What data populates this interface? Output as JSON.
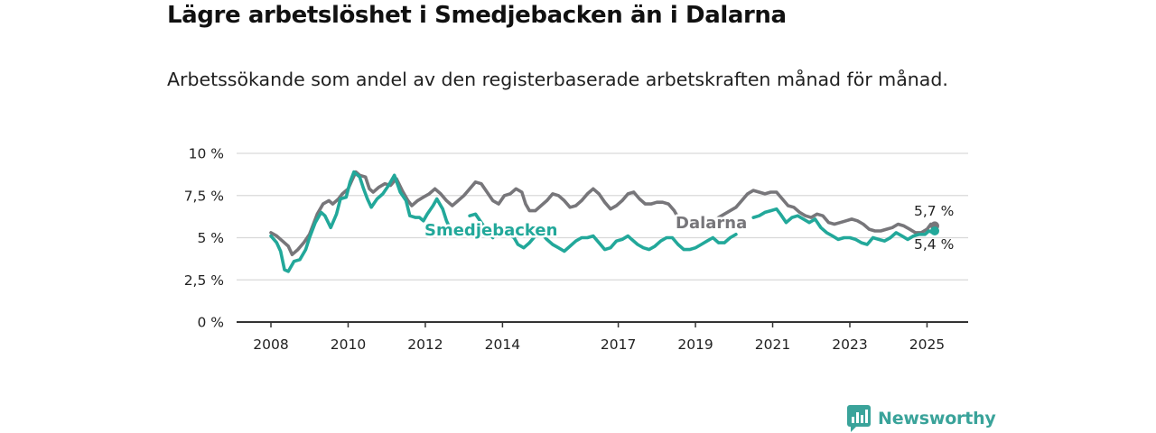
{
  "title": "Lägre arbetslöshet i Smedjebacken än i Dalarna",
  "subtitle": "Arbetssökande som andel av den registerbaserade arbetskraften månad för månad.",
  "brand": {
    "name": "Newsworthy",
    "icon": "newsworthy-logo-icon",
    "color": "#3aa39a"
  },
  "chart_data": {
    "type": "line",
    "title": "Lägre arbetslöshet i Smedjebacken än i Dalarna",
    "subtitle": "Arbetssökande som andel av den registerbaserade arbetskraften månad för månad.",
    "x_range": [
      2008.0,
      2025.25
    ],
    "ylim": [
      0,
      10
    ],
    "y_ticks": [
      {
        "value": 0,
        "label": "0 %"
      },
      {
        "value": 2.5,
        "label": "2,5 %"
      },
      {
        "value": 5,
        "label": "5 %"
      },
      {
        "value": 7.5,
        "label": "7,5 %"
      },
      {
        "value": 10,
        "label": "10 %"
      }
    ],
    "x_ticks": [
      {
        "value": 2008,
        "label": "2008"
      },
      {
        "value": 2010,
        "label": "2010"
      },
      {
        "value": 2012,
        "label": "2012"
      },
      {
        "value": 2014,
        "label": "2014"
      },
      {
        "value": 2017,
        "label": "2017"
      },
      {
        "value": 2019,
        "label": "2019"
      },
      {
        "value": 2021,
        "label": "2021"
      },
      {
        "value": 2023,
        "label": "2023"
      },
      {
        "value": 2025,
        "label": "2025"
      }
    ],
    "grid": true,
    "legend": "inline labels",
    "series": [
      {
        "name": "Dalarna",
        "color": "#77767a",
        "end_label": "5,7 %",
        "points": [
          [
            2008.0,
            5.3
          ],
          [
            2008.15,
            5.1
          ],
          [
            2008.3,
            4.8
          ],
          [
            2008.45,
            4.5
          ],
          [
            2008.55,
            4.0
          ],
          [
            2008.7,
            4.3
          ],
          [
            2008.85,
            4.7
          ],
          [
            2009.0,
            5.2
          ],
          [
            2009.1,
            5.8
          ],
          [
            2009.2,
            6.4
          ],
          [
            2009.35,
            7.0
          ],
          [
            2009.5,
            7.2
          ],
          [
            2009.6,
            7.0
          ],
          [
            2009.75,
            7.3
          ],
          [
            2009.85,
            7.6
          ],
          [
            2010.0,
            7.9
          ],
          [
            2010.1,
            8.4
          ],
          [
            2010.2,
            8.9
          ],
          [
            2010.3,
            8.7
          ],
          [
            2010.45,
            8.6
          ],
          [
            2010.55,
            7.9
          ],
          [
            2010.65,
            7.7
          ],
          [
            2010.8,
            8.0
          ],
          [
            2010.95,
            8.2
          ],
          [
            2011.1,
            8.1
          ],
          [
            2011.25,
            8.5
          ],
          [
            2011.4,
            7.8
          ],
          [
            2011.55,
            7.2
          ],
          [
            2011.65,
            6.9
          ],
          [
            2011.8,
            7.2
          ],
          [
            2011.95,
            7.4
          ],
          [
            2012.1,
            7.6
          ],
          [
            2012.25,
            7.9
          ],
          [
            2012.4,
            7.6
          ],
          [
            2012.55,
            7.2
          ],
          [
            2012.7,
            6.9
          ],
          [
            2012.85,
            7.2
          ],
          [
            2013.0,
            7.5
          ],
          [
            2013.15,
            7.9
          ],
          [
            2013.3,
            8.3
          ],
          [
            2013.45,
            8.2
          ],
          [
            2013.6,
            7.7
          ],
          [
            2013.75,
            7.2
          ],
          [
            2013.9,
            7.0
          ],
          [
            2014.05,
            7.5
          ],
          [
            2014.2,
            7.6
          ],
          [
            2014.35,
            7.9
          ],
          [
            2014.5,
            7.7
          ],
          [
            2014.6,
            7.0
          ],
          [
            2014.7,
            6.6
          ],
          [
            2014.85,
            6.6
          ],
          [
            2015.0,
            6.9
          ],
          [
            2015.15,
            7.2
          ],
          [
            2015.3,
            7.6
          ],
          [
            2015.45,
            7.5
          ],
          [
            2015.6,
            7.2
          ],
          [
            2015.75,
            6.8
          ],
          [
            2015.9,
            6.9
          ],
          [
            2016.05,
            7.2
          ],
          [
            2016.2,
            7.6
          ],
          [
            2016.35,
            7.9
          ],
          [
            2016.5,
            7.6
          ],
          [
            2016.65,
            7.1
          ],
          [
            2016.8,
            6.7
          ],
          [
            2016.95,
            6.9
          ],
          [
            2017.1,
            7.2
          ],
          [
            2017.25,
            7.6
          ],
          [
            2017.4,
            7.7
          ],
          [
            2017.55,
            7.3
          ],
          [
            2017.7,
            7.0
          ],
          [
            2017.85,
            7.0
          ],
          [
            2018.0,
            7.1
          ],
          [
            2018.15,
            7.1
          ],
          [
            2018.3,
            7.0
          ],
          [
            2018.45,
            6.6
          ],
          [
            2018.55,
            6.2
          ],
          [
            2018.7,
            null
          ],
          [
            2019.0,
            null
          ],
          [
            2019.15,
            6.2
          ],
          [
            2019.3,
            5.9
          ],
          [
            2019.45,
            5.8
          ],
          [
            2019.6,
            6.2
          ],
          [
            2019.75,
            6.4
          ],
          [
            2019.9,
            6.6
          ],
          [
            2020.05,
            6.8
          ],
          [
            2020.2,
            7.2
          ],
          [
            2020.35,
            7.6
          ],
          [
            2020.5,
            7.8
          ],
          [
            2020.65,
            7.7
          ],
          [
            2020.8,
            7.6
          ],
          [
            2020.95,
            7.7
          ],
          [
            2021.1,
            7.7
          ],
          [
            2021.25,
            7.3
          ],
          [
            2021.4,
            6.9
          ],
          [
            2021.55,
            6.8
          ],
          [
            2021.7,
            6.5
          ],
          [
            2021.85,
            6.3
          ],
          [
            2022.0,
            6.2
          ],
          [
            2022.15,
            6.4
          ],
          [
            2022.3,
            6.3
          ],
          [
            2022.45,
            5.9
          ],
          [
            2022.6,
            5.8
          ],
          [
            2022.75,
            5.9
          ],
          [
            2022.9,
            6.0
          ],
          [
            2023.05,
            6.1
          ],
          [
            2023.2,
            6.0
          ],
          [
            2023.35,
            5.8
          ],
          [
            2023.5,
            5.5
          ],
          [
            2023.65,
            5.4
          ],
          [
            2023.8,
            5.4
          ],
          [
            2023.95,
            5.5
          ],
          [
            2024.1,
            5.6
          ],
          [
            2024.25,
            5.8
          ],
          [
            2024.4,
            5.7
          ],
          [
            2024.55,
            5.5
          ],
          [
            2024.7,
            5.3
          ],
          [
            2024.85,
            5.3
          ],
          [
            2025.0,
            5.5
          ],
          [
            2025.1,
            5.8
          ],
          [
            2025.2,
            5.7
          ]
        ]
      },
      {
        "name": "Smedjebacken",
        "color": "#22a89a",
        "end_label": "5,4 %",
        "points": [
          [
            2008.0,
            5.1
          ],
          [
            2008.15,
            4.7
          ],
          [
            2008.25,
            4.2
          ],
          [
            2008.35,
            3.1
          ],
          [
            2008.45,
            3.0
          ],
          [
            2008.6,
            3.6
          ],
          [
            2008.75,
            3.7
          ],
          [
            2008.9,
            4.3
          ],
          [
            2009.0,
            5.0
          ],
          [
            2009.15,
            5.9
          ],
          [
            2009.3,
            6.5
          ],
          [
            2009.4,
            6.3
          ],
          [
            2009.55,
            5.6
          ],
          [
            2009.7,
            6.4
          ],
          [
            2009.8,
            7.3
          ],
          [
            2009.95,
            7.4
          ],
          [
            2010.05,
            8.3
          ],
          [
            2010.15,
            8.9
          ],
          [
            2010.3,
            8.6
          ],
          [
            2010.4,
            7.9
          ],
          [
            2010.5,
            7.3
          ],
          [
            2010.6,
            6.8
          ],
          [
            2010.75,
            7.3
          ],
          [
            2010.9,
            7.6
          ],
          [
            2011.05,
            8.1
          ],
          [
            2011.2,
            8.7
          ],
          [
            2011.35,
            7.7
          ],
          [
            2011.5,
            7.2
          ],
          [
            2011.6,
            6.3
          ],
          [
            2011.75,
            6.2
          ],
          [
            2011.85,
            6.2
          ],
          [
            2011.95,
            6.0
          ],
          [
            2012.05,
            6.4
          ],
          [
            2012.2,
            6.9
          ],
          [
            2012.3,
            7.3
          ],
          [
            2012.45,
            6.7
          ],
          [
            2012.55,
            6.0
          ],
          [
            2012.65,
            5.5
          ],
          [
            2012.75,
            5.2
          ],
          [
            2012.85,
            null
          ],
          [
            2013.05,
            null
          ],
          [
            2013.15,
            6.3
          ],
          [
            2013.3,
            6.4
          ],
          [
            2013.45,
            5.9
          ],
          [
            2013.6,
            5.4
          ],
          [
            2013.75,
            5.0
          ],
          [
            2013.9,
            null
          ],
          [
            2014.05,
            null
          ],
          [
            2014.15,
            5.2
          ],
          [
            2014.3,
            5.0
          ],
          [
            2014.4,
            4.6
          ],
          [
            2014.55,
            4.4
          ],
          [
            2014.7,
            4.7
          ],
          [
            2014.85,
            5.1
          ],
          [
            2015.0,
            5.3
          ],
          [
            2015.15,
            4.9
          ],
          [
            2015.3,
            4.6
          ],
          [
            2015.45,
            4.4
          ],
          [
            2015.6,
            4.2
          ],
          [
            2015.75,
            4.5
          ],
          [
            2015.9,
            4.8
          ],
          [
            2016.05,
            5.0
          ],
          [
            2016.2,
            5.0
          ],
          [
            2016.35,
            5.1
          ],
          [
            2016.5,
            4.7
          ],
          [
            2016.65,
            4.3
          ],
          [
            2016.8,
            4.4
          ],
          [
            2016.95,
            4.8
          ],
          [
            2017.1,
            4.9
          ],
          [
            2017.25,
            5.1
          ],
          [
            2017.35,
            4.9
          ],
          [
            2017.5,
            4.6
          ],
          [
            2017.65,
            4.4
          ],
          [
            2017.8,
            4.3
          ],
          [
            2017.95,
            4.5
          ],
          [
            2018.1,
            4.8
          ],
          [
            2018.25,
            5.0
          ],
          [
            2018.4,
            5.0
          ],
          [
            2018.55,
            4.6
          ],
          [
            2018.7,
            4.3
          ],
          [
            2018.85,
            4.3
          ],
          [
            2019.0,
            4.4
          ],
          [
            2019.15,
            4.6
          ],
          [
            2019.3,
            4.8
          ],
          [
            2019.45,
            5.0
          ],
          [
            2019.6,
            4.7
          ],
          [
            2019.75,
            4.7
          ],
          [
            2019.9,
            5.0
          ],
          [
            2020.05,
            5.2
          ],
          [
            2020.2,
            null
          ],
          [
            2020.4,
            null
          ],
          [
            2020.5,
            6.2
          ],
          [
            2020.65,
            6.3
          ],
          [
            2020.8,
            6.5
          ],
          [
            2020.95,
            6.6
          ],
          [
            2021.1,
            6.7
          ],
          [
            2021.2,
            6.4
          ],
          [
            2021.35,
            5.9
          ],
          [
            2021.5,
            6.2
          ],
          [
            2021.65,
            6.3
          ],
          [
            2021.8,
            6.1
          ],
          [
            2021.95,
            5.9
          ],
          [
            2022.1,
            6.1
          ],
          [
            2022.25,
            5.6
          ],
          [
            2022.4,
            5.3
          ],
          [
            2022.55,
            5.1
          ],
          [
            2022.7,
            4.9
          ],
          [
            2022.85,
            5.0
          ],
          [
            2023.0,
            5.0
          ],
          [
            2023.15,
            4.9
          ],
          [
            2023.3,
            4.7
          ],
          [
            2023.45,
            4.6
          ],
          [
            2023.6,
            5.0
          ],
          [
            2023.75,
            4.9
          ],
          [
            2023.9,
            4.8
          ],
          [
            2024.05,
            5.0
          ],
          [
            2024.2,
            5.3
          ],
          [
            2024.35,
            5.1
          ],
          [
            2024.5,
            4.9
          ],
          [
            2024.65,
            5.1
          ],
          [
            2024.8,
            5.2
          ],
          [
            2024.95,
            5.2
          ],
          [
            2025.05,
            5.4
          ],
          [
            2025.15,
            5.3
          ],
          [
            2025.2,
            5.4
          ]
        ]
      }
    ]
  }
}
